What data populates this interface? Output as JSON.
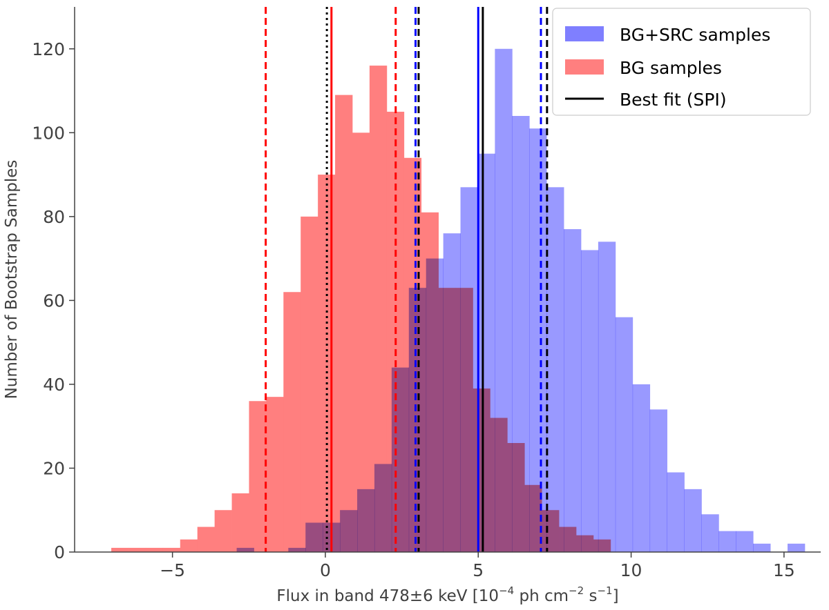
{
  "chart_data": {
    "type": "bar",
    "subtype": "overlapping-histogram",
    "title": "",
    "xlabel": {
      "prefix": "Flux in band 478±6 keV [10",
      "exp1": "−4",
      "mid": " ph cm",
      "exp2": "−2",
      "mid2": " s",
      "exp3": "−1",
      "suffix": "]"
    },
    "ylabel": "Number of Bootstrap Samples",
    "xlim": [
      -8.2,
      16.2
    ],
    "ylim": [
      0,
      130
    ],
    "xticks": [
      -5,
      0,
      5,
      10,
      15
    ],
    "xtick_labels": [
      "−5",
      "0",
      "5",
      "10",
      "15"
    ],
    "yticks": [
      0,
      20,
      40,
      60,
      80,
      100,
      120
    ],
    "ytick_labels": [
      "0",
      "20",
      "40",
      "60",
      "80",
      "100",
      "120"
    ],
    "grid": false,
    "legend_position": "top-right",
    "colors": {
      "bg": "#ff6f6f",
      "bgsrc": "#6f6ff6",
      "red_line": "#ff0000",
      "blue_line": "#0000ff",
      "black_line": "#000000",
      "axis": "#404040"
    },
    "series": [
      {
        "name": "BG samples",
        "color": "#ff7f7f",
        "bin_start": -7.0,
        "bin_width": 0.563,
        "counts": [
          1,
          1,
          1,
          1,
          3,
          6,
          10,
          14,
          36,
          37,
          62,
          80,
          90,
          109,
          100,
          116,
          105,
          94,
          81,
          63,
          63,
          39,
          32,
          26,
          16,
          10,
          6,
          4,
          3
        ]
      },
      {
        "name": "BG+SRC samples",
        "color": "#7f7fff",
        "bin_start": -2.9,
        "bin_width": 0.563,
        "counts": [
          1,
          0,
          0,
          1,
          7,
          7,
          10,
          15,
          21,
          44,
          63,
          70,
          76,
          87,
          95,
          120,
          104,
          101,
          87,
          77,
          72,
          74,
          56,
          40,
          34,
          19,
          15,
          9,
          5,
          5,
          2,
          0,
          2
        ]
      }
    ],
    "vertical_lines": [
      {
        "name": "bg-lower",
        "x": -1.95,
        "color": "#ff0000",
        "style": "dashed"
      },
      {
        "name": "bg-zero",
        "x": 0.05,
        "color": "#000000",
        "style": "dotted"
      },
      {
        "name": "bg-median",
        "x": 0.2,
        "color": "#ff0000",
        "style": "solid"
      },
      {
        "name": "bg-upper",
        "x": 2.3,
        "color": "#ff0000",
        "style": "dashed"
      },
      {
        "name": "src-lower",
        "x": 2.95,
        "color": "#0000ff",
        "style": "dashed"
      },
      {
        "name": "spi-lower",
        "x": 3.05,
        "color": "#000000",
        "style": "dashed"
      },
      {
        "name": "src-median",
        "x": 5.0,
        "color": "#0000ff",
        "style": "solid"
      },
      {
        "name": "spi-best",
        "x": 5.15,
        "color": "#000000",
        "style": "solid"
      },
      {
        "name": "src-upper",
        "x": 7.05,
        "color": "#0000ff",
        "style": "dashed"
      },
      {
        "name": "spi-upper",
        "x": 7.25,
        "color": "#000000",
        "style": "dashed"
      }
    ],
    "legend": [
      {
        "label": "BG+SRC samples",
        "kind": "patch",
        "color": "#7f7fff"
      },
      {
        "label": "BG samples",
        "kind": "patch",
        "color": "#ff7f7f"
      },
      {
        "label": "Best fit (SPI)",
        "kind": "line",
        "color": "#000000"
      }
    ]
  }
}
